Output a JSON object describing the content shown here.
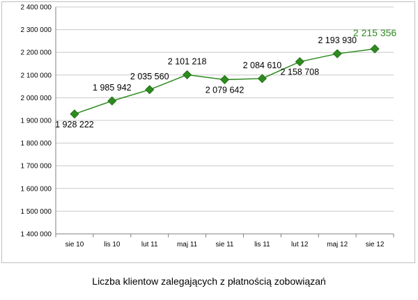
{
  "chart_data": {
    "type": "line",
    "title": "",
    "xlabel": "",
    "ylabel": "",
    "categories": [
      "sie 10",
      "lis 10",
      "lut 11",
      "maj 11",
      "sie 11",
      "lis 11",
      "lut 12",
      "maj 12",
      "sie 12"
    ],
    "series": [
      {
        "values": [
          1928222,
          1985942,
          2035560,
          2101218,
          2079642,
          2084610,
          2158708,
          2193930,
          2215356
        ],
        "data_labels": [
          "1 928 222",
          "1 985 942",
          "2 035 560",
          "2 101 218",
          "2 079 642",
          "2 084 610",
          "2 158 708",
          "2 193 930",
          "2 215 356"
        ],
        "color": "#2e8b1f",
        "marker": "diamond"
      }
    ],
    "ylim": [
      1400000,
      2400000
    ],
    "ytick_step": 100000,
    "ytick_labels": [
      "1 400 000",
      "1 500 000",
      "1 600 000",
      "1 700 000",
      "1 800 000",
      "1 900 000",
      "2 000 000",
      "2 100 000",
      "2 200 000",
      "2 300 000",
      "2 400 000"
    ],
    "grid": "horizontal",
    "grid_color": "#c8c8c8",
    "last_label_color": "#2e8b1f"
  },
  "caption": "Liczba klientow zalegających z płatnością zobowiązań"
}
